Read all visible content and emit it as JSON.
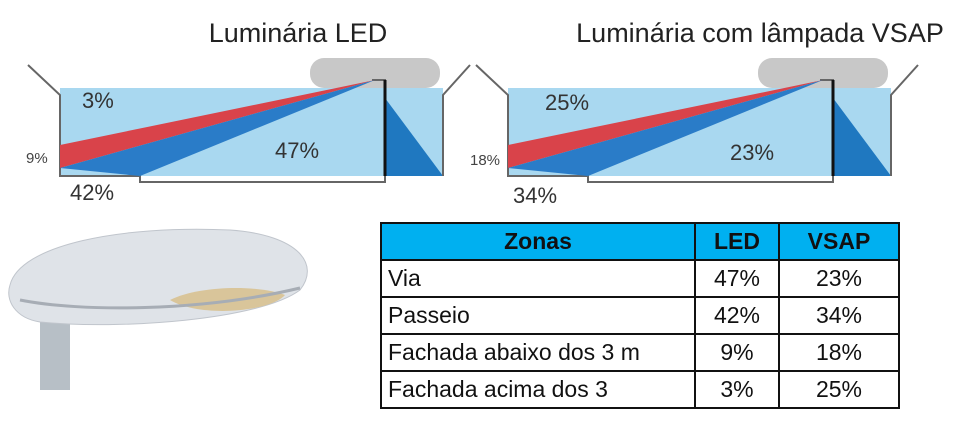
{
  "diagrams": [
    {
      "title": "Luminária LED",
      "labels": [
        "3%",
        "9%",
        "42%",
        "47%"
      ]
    },
    {
      "title": "Luminária com lâmpada VSAP",
      "labels": [
        "25%",
        "18%",
        "34%",
        "23%"
      ]
    }
  ],
  "table": {
    "header": [
      "Zonas",
      "LED",
      "VSAP"
    ],
    "rows": [
      [
        "Via",
        "47%",
        "23%"
      ],
      [
        "Passeio",
        "42%",
        "34%"
      ],
      [
        "Fachada abaixo dos 3 m",
        "9%",
        "18%"
      ],
      [
        "Fachada acima dos 3",
        "3%",
        "25%"
      ]
    ]
  }
}
